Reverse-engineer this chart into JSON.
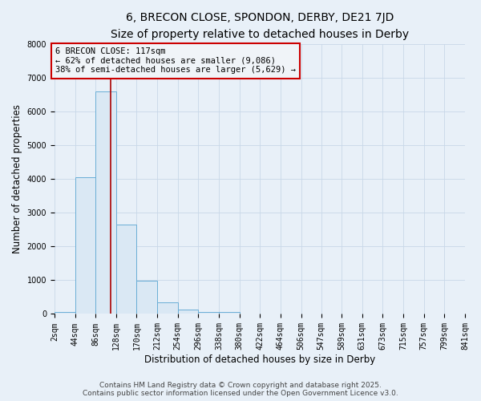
{
  "title": "6, BRECON CLOSE, SPONDON, DERBY, DE21 7JD",
  "subtitle": "Size of property relative to detached houses in Derby",
  "xlabel": "Distribution of detached houses by size in Derby",
  "ylabel": "Number of detached properties",
  "bin_edges": [
    2,
    44,
    86,
    128,
    170,
    212,
    254,
    296,
    338,
    380,
    422,
    464,
    506,
    547,
    589,
    631,
    673,
    715,
    757,
    799,
    841
  ],
  "bar_heights": [
    50,
    4050,
    6600,
    2650,
    980,
    340,
    130,
    60,
    50,
    0,
    0,
    0,
    0,
    0,
    0,
    0,
    0,
    0,
    0,
    0
  ],
  "bar_color": "#dae8f4",
  "bar_edgecolor": "#6aaed6",
  "vline_x": 117,
  "vline_color": "#aa0000",
  "annotation_text": "6 BRECON CLOSE: 117sqm\n← 62% of detached houses are smaller (9,086)\n38% of semi-detached houses are larger (5,629) →",
  "annotation_box_edgecolor": "#cc0000",
  "annotation_bg_color": "#f0f4f8",
  "ylim": [
    0,
    8000
  ],
  "yticks": [
    0,
    1000,
    2000,
    3000,
    4000,
    5000,
    6000,
    7000,
    8000
  ],
  "grid_color": "#c8d8e8",
  "background_color": "#e8f0f8",
  "footer_line1": "Contains HM Land Registry data © Crown copyright and database right 2025.",
  "footer_line2": "Contains public sector information licensed under the Open Government Licence v3.0.",
  "title_fontsize": 10,
  "subtitle_fontsize": 9,
  "axis_label_fontsize": 8.5,
  "tick_fontsize": 7,
  "annotation_fontsize": 7.5,
  "footer_fontsize": 6.5
}
